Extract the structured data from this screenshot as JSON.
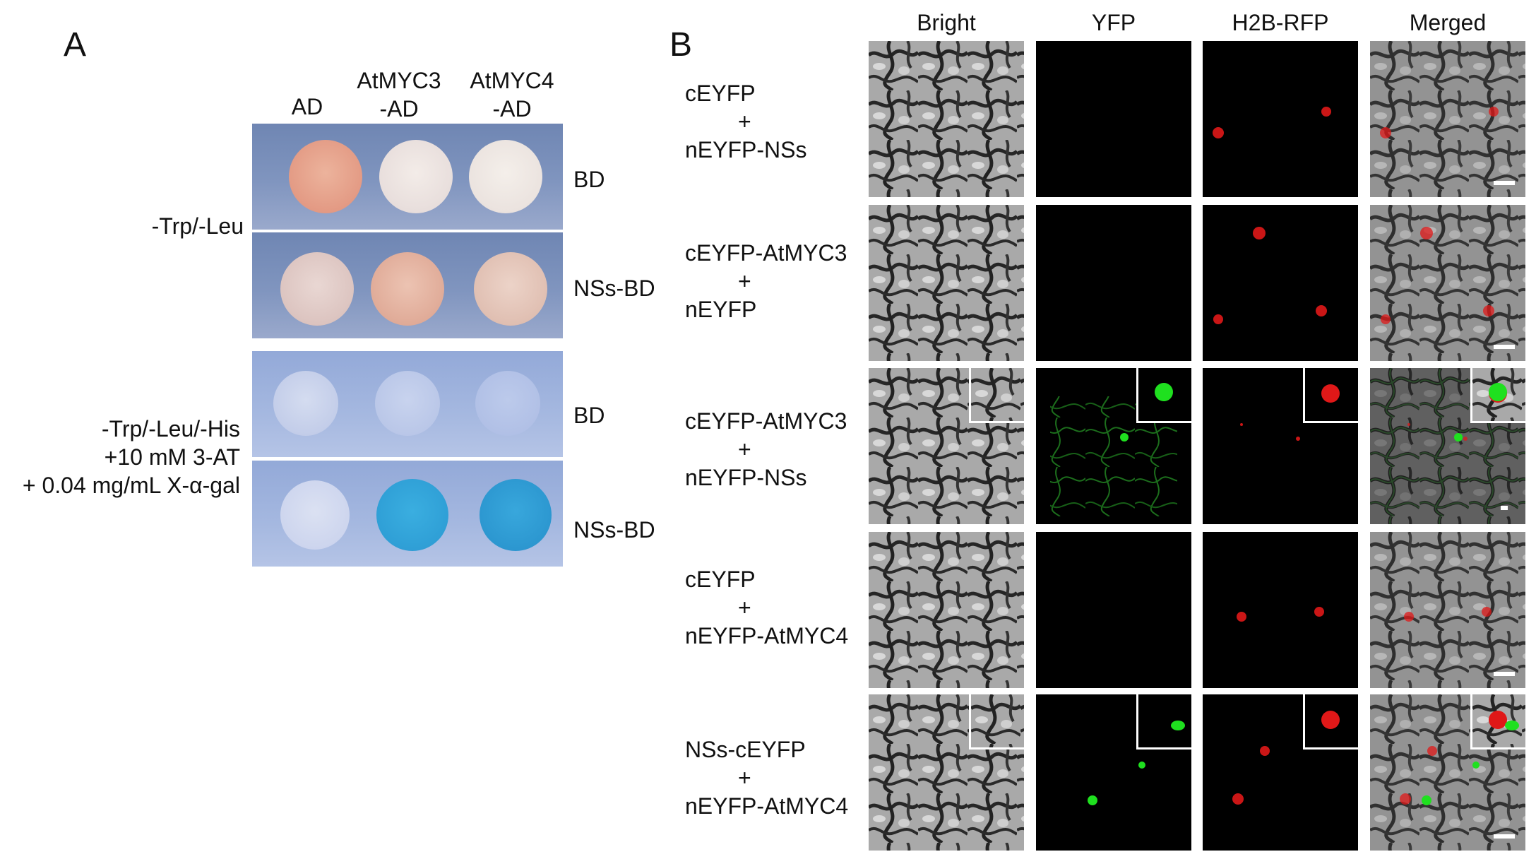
{
  "panel_a": {
    "letter": "A",
    "col_labels": {
      "ad": "AD",
      "myc3_l1": "AtMYC3",
      "myc3_l2": "-AD",
      "myc4_l1": "AtMYC4",
      "myc4_l2": "-AD"
    },
    "condition1": "-Trp/-Leu",
    "condition2_l1": "-Trp/-Leu/-His",
    "condition2_l2": "+10 mM 3-AT",
    "condition2_l3": "+ 0.04 mg/mL X-α-gal",
    "row_labels": [
      "BD",
      "NSs-BD",
      "BD",
      "NSs-BD"
    ]
  },
  "panel_b": {
    "letter": "B",
    "col_headers": [
      "Bright",
      "YFP",
      "H2B-RFP",
      "Merged"
    ],
    "rows": [
      {
        "l1": "cEYFP",
        "l2": "+",
        "l3": "nEYFP-NSs"
      },
      {
        "l1": "cEYFP-AtMYC3",
        "l2": "+",
        "l3": "nEYFP"
      },
      {
        "l1": "cEYFP-AtMYC3",
        "l2": "+",
        "l3": "nEYFP-NSs"
      },
      {
        "l1": "cEYFP",
        "l2": "+",
        "l3": "nEYFP-AtMYC4"
      },
      {
        "l1": "NSs-cEYFP",
        "l2": "+",
        "l3": "nEYFP-AtMYC4"
      }
    ]
  },
  "colors": {
    "red_nucleus": "#e01818",
    "yfp_green": "#1fe01f",
    "blue_colony": "#2f9fd6",
    "pink_colony": "#e8a890"
  }
}
